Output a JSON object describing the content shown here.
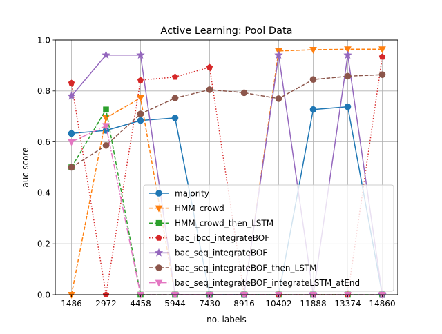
{
  "chart_data": {
    "type": "line",
    "title": "Active Learning: Pool Data",
    "xlabel": "no. labels",
    "ylabel": "auc-score",
    "categories": [
      "1486",
      "2972",
      "4458",
      "5944",
      "7430",
      "8916",
      "10402",
      "11888",
      "13374",
      "14860"
    ],
    "x": [
      1486,
      2972,
      4458,
      5944,
      7430,
      8916,
      10402,
      11888,
      13374,
      14860
    ],
    "ylim": [
      0.0,
      1.0
    ],
    "yticks": [
      "0.0",
      "0.2",
      "0.4",
      "0.6",
      "0.8",
      "1.0"
    ],
    "grid": true,
    "legend_position": "lower right",
    "series": [
      {
        "name": "majority",
        "color": "#1f77b4",
        "marker": "circle",
        "linestyle": "solid",
        "values": [
          0.633,
          0.645,
          0.684,
          0.694,
          0.0,
          0.0,
          0.0,
          0.727,
          0.738,
          0.0
        ]
      },
      {
        "name": "HMM_crowd",
        "color": "#ff7f0e",
        "marker": "triangle-down",
        "linestyle": "dashed",
        "values": [
          0.0,
          0.694,
          0.773,
          0.0,
          0.0,
          0.0,
          0.957,
          0.962,
          0.964,
          0.964
        ]
      },
      {
        "name": "HMM_crowd_then_LSTM",
        "color": "#2ca02c",
        "marker": "square",
        "linestyle": "dashed",
        "values": [
          0.5,
          0.727,
          0.0,
          0.0,
          0.0,
          0.0,
          0.0,
          0.0,
          0.0,
          0.0
        ]
      },
      {
        "name": "bac_ibcc_integrateBOF",
        "color": "#d62728",
        "marker": "pentagon",
        "linestyle": "dotted",
        "values": [
          0.831,
          0.0,
          0.842,
          0.855,
          0.893,
          0.0,
          0.0,
          0.0,
          0.0,
          0.934
        ]
      },
      {
        "name": "bac_seq_integrateBOF",
        "color": "#9467bd",
        "marker": "star",
        "linestyle": "solid",
        "values": [
          0.78,
          0.941,
          0.941,
          0.0,
          0.0,
          0.0,
          0.941,
          0.0,
          0.941,
          0.0
        ]
      },
      {
        "name": "bac_seq_integrateBOF_then_LSTM",
        "color": "#8c564b",
        "marker": "circle",
        "linestyle": "dashed",
        "values": [
          0.5,
          0.586,
          0.71,
          0.772,
          0.805,
          0.793,
          0.77,
          0.845,
          0.858,
          0.864
        ]
      },
      {
        "name": "bac_seq_integrateBOF_integrateLSTM_atEnd",
        "color": "#e377c2",
        "marker": "triangle-down",
        "linestyle": "dashdot",
        "values": [
          0.6,
          0.663,
          0.0,
          0.0,
          0.0,
          0.0,
          0.0,
          0.0,
          0.0,
          0.0
        ]
      }
    ]
  }
}
